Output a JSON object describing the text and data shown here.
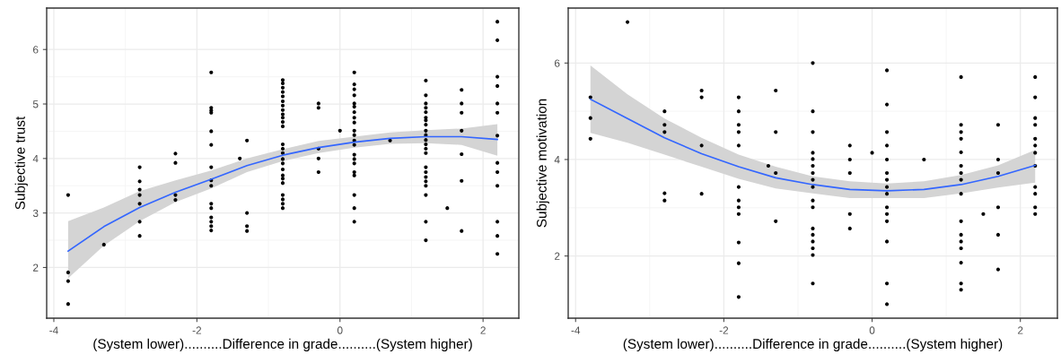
{
  "chart_data": [
    {
      "type": "scatter",
      "xlabel": "(System lower)..........Difference in grade..........(System higher)",
      "ylabel": "Subjective trust",
      "xlim": [
        -4.1,
        2.5
      ],
      "ylim": [
        1.07,
        6.76
      ],
      "xticks": [
        -4,
        -2,
        0,
        2
      ],
      "yticks": [
        2,
        3,
        4,
        5,
        6
      ],
      "grid": true,
      "series": [
        {
          "marker": "circle",
          "color": "#000000",
          "x": [
            -3.8,
            -3.8,
            -3.8,
            -3.8,
            -3.3,
            -2.8,
            -2.8,
            -2.8,
            -2.8,
            -2.8,
            -2.8,
            -2.8,
            -2.3,
            -2.3,
            -2.3,
            -2.3,
            -1.8,
            -1.8,
            -1.8,
            -1.8,
            -1.8,
            -1.8,
            -1.8,
            -1.8,
            -1.8,
            -1.8,
            -1.8,
            -1.8,
            -1.8,
            -1.8,
            -1.8,
            -1.4,
            -1.3,
            -1.3,
            -1.3,
            -1.3,
            -0.8,
            -0.8,
            -0.8,
            -0.8,
            -0.8,
            -0.8,
            -0.8,
            -0.8,
            -0.8,
            -0.8,
            -0.8,
            -0.8,
            -0.8,
            -0.8,
            -0.8,
            -0.8,
            -0.8,
            -0.8,
            -0.8,
            -0.8,
            -0.8,
            -0.8,
            -0.8,
            -0.8,
            -0.8,
            -0.3,
            -0.3,
            -0.3,
            -0.3,
            -0.3,
            0,
            0.2,
            0.2,
            0.2,
            0.2,
            0.2,
            0.2,
            0.2,
            0.2,
            0.2,
            0.2,
            0.2,
            0.2,
            0.2,
            0.2,
            0.2,
            0.2,
            0.2,
            0.2,
            0.2,
            0.2,
            0.2,
            0.7,
            1.2,
            1.2,
            1.2,
            1.2,
            1.2,
            1.2,
            1.2,
            1.2,
            1.2,
            1.2,
            1.2,
            1.2,
            1.2,
            1.2,
            1.2,
            1.2,
            1.2,
            1.2,
            1.2,
            1.2,
            1.2,
            1.2,
            1.5,
            1.7,
            1.7,
            1.7,
            1.7,
            1.7,
            1.7,
            1.7,
            2.2,
            2.2,
            2.2,
            2.2,
            2.2,
            2.2,
            2.2,
            2.2,
            2.2,
            2.2,
            2.2,
            2.2,
            2.2
          ],
          "values": [
            3.33,
            1.91,
            1.75,
            1.33,
            2.42,
            3.84,
            3.58,
            3.43,
            3.33,
            3.17,
            2.84,
            2.58,
            4.09,
            3.92,
            3.33,
            3.24,
            5.58,
            4.93,
            4.88,
            4.84,
            4.5,
            4.25,
            3.84,
            3.6,
            3.5,
            3.17,
            3.09,
            2.92,
            2.84,
            2.76,
            2.68,
            4.0,
            4.33,
            3.0,
            2.76,
            2.67,
            5.44,
            5.38,
            5.3,
            5.22,
            5.14,
            5.05,
            4.97,
            4.89,
            4.81,
            4.75,
            4.67,
            4.59,
            4.26,
            4.18,
            4.1,
            3.99,
            3.91,
            3.8,
            3.69,
            3.63,
            3.55,
            3.33,
            3.25,
            3.17,
            3.09,
            5.01,
            4.93,
            4.18,
            4.0,
            3.75,
            4.51,
            5.58,
            5.36,
            5.27,
            5.16,
            5.01,
            4.95,
            4.85,
            4.75,
            4.66,
            4.51,
            4.43,
            4.33,
            4.25,
            4.07,
            3.99,
            3.91,
            3.75,
            3.69,
            3.33,
            3.09,
            2.84,
            4.33,
            5.43,
            5.16,
            5.01,
            4.93,
            4.85,
            4.75,
            4.7,
            4.62,
            4.51,
            4.43,
            4.34,
            4.26,
            4.18,
            4.1,
            3.84,
            3.75,
            3.66,
            3.58,
            3.5,
            3.33,
            2.84,
            2.5,
            3.09,
            5.26,
            5.01,
            4.84,
            4.51,
            4.08,
            3.59,
            2.67,
            6.51,
            6.17,
            5.5,
            5.33,
            5.01,
            4.84,
            4.42,
            3.92,
            3.75,
            3.5,
            2.84,
            2.58,
            2.25
          ]
        },
        {
          "type": "line",
          "color": "#3366ff",
          "x": [
            -3.8,
            -3.3,
            -2.8,
            -2.3,
            -1.8,
            -1.3,
            -0.8,
            -0.3,
            0.2,
            0.7,
            1.2,
            1.7,
            2.2
          ],
          "values": [
            2.3,
            2.75,
            3.1,
            3.38,
            3.62,
            3.87,
            4.06,
            4.2,
            4.3,
            4.37,
            4.4,
            4.4,
            4.35
          ],
          "lower": [
            1.8,
            2.4,
            2.85,
            3.2,
            3.45,
            3.75,
            3.95,
            4.1,
            4.2,
            4.27,
            4.28,
            4.25,
            4.05
          ],
          "upper": [
            2.85,
            3.1,
            3.4,
            3.6,
            3.78,
            4.0,
            4.17,
            4.32,
            4.4,
            4.48,
            4.52,
            4.55,
            4.63
          ]
        }
      ]
    },
    {
      "type": "scatter",
      "xlabel": "(System lower)..........Difference in grade..........(System higher)",
      "ylabel": "Subjective motivation",
      "xlim": [
        -4.1,
        2.5
      ],
      "ylim": [
        0.71,
        7.14
      ],
      "xticks": [
        -4,
        -2,
        0,
        2
      ],
      "yticks": [
        2,
        4,
        6
      ],
      "grid": true,
      "series": [
        {
          "marker": "circle",
          "color": "#000000",
          "x": [
            -3.8,
            -3.8,
            -3.8,
            -3.3,
            -2.8,
            -2.8,
            -2.8,
            -2.8,
            -2.8,
            -2.3,
            -2.3,
            -2.3,
            -2.3,
            -1.8,
            -1.8,
            -1.8,
            -1.8,
            -1.8,
            -1.8,
            -1.8,
            -1.8,
            -1.8,
            -1.8,
            -1.8,
            -1.8,
            -1.4,
            -1.3,
            -1.3,
            -1.3,
            -1.3,
            -0.8,
            -0.8,
            -0.8,
            -0.8,
            -0.8,
            -0.8,
            -0.8,
            -0.8,
            -0.8,
            -0.8,
            -0.8,
            -0.8,
            -0.8,
            -0.8,
            -0.8,
            -0.8,
            -0.8,
            -0.3,
            -0.3,
            -0.3,
            -0.3,
            -0.3,
            0,
            0.2,
            0.2,
            0.2,
            0.2,
            0.2,
            0.2,
            0.2,
            0.2,
            0.2,
            0.2,
            0.2,
            0.2,
            0.2,
            0.2,
            0.2,
            0.7,
            1.2,
            1.2,
            1.2,
            1.2,
            1.2,
            1.2,
            1.2,
            1.2,
            1.2,
            1.2,
            1.2,
            1.2,
            1.2,
            1.2,
            1.2,
            1.2,
            1.5,
            1.7,
            1.7,
            1.7,
            1.7,
            1.7,
            1.7,
            2.2,
            2.2,
            2.2,
            2.2,
            2.2,
            2.2,
            2.2,
            2.2,
            2.2,
            2.2,
            2.2,
            2.2
          ],
          "values": [
            5.29,
            4.86,
            4.43,
            6.85,
            5.0,
            4.72,
            4.57,
            3.3,
            3.15,
            5.43,
            5.29,
            4.29,
            3.29,
            5.29,
            5.0,
            4.72,
            4.57,
            4.29,
            3.43,
            3.15,
            3.01,
            2.87,
            2.28,
            1.85,
            1.15,
            3.87,
            5.43,
            4.57,
            3.72,
            2.72,
            6.0,
            5.0,
            4.57,
            4.14,
            4.01,
            3.87,
            3.72,
            3.58,
            3.43,
            3.15,
            3.01,
            2.57,
            2.44,
            2.3,
            2.16,
            2.02,
            1.43,
            4.29,
            4.0,
            3.72,
            2.87,
            2.57,
            4.14,
            5.85,
            5.14,
            4.57,
            4.29,
            4.0,
            3.72,
            3.58,
            3.43,
            3.29,
            3.01,
            2.87,
            2.72,
            2.3,
            1.43,
            1.0,
            4.0,
            5.71,
            4.72,
            4.57,
            4.43,
            4.15,
            3.87,
            3.72,
            3.58,
            3.29,
            2.72,
            2.44,
            2.3,
            2.16,
            1.86,
            1.43,
            1.3,
            2.87,
            4.72,
            4.0,
            3.72,
            3.01,
            2.44,
            1.72,
            5.71,
            5.29,
            4.86,
            4.72,
            4.43,
            4.29,
            4.14,
            3.87,
            3.43,
            3.29,
            3.01,
            2.87
          ]
        },
        {
          "type": "line",
          "color": "#3366ff",
          "x": [
            -3.8,
            -3.3,
            -2.8,
            -2.3,
            -1.8,
            -1.3,
            -0.8,
            -0.3,
            0.2,
            0.7,
            1.2,
            1.7,
            2.2
          ],
          "values": [
            5.25,
            4.85,
            4.45,
            4.12,
            3.85,
            3.62,
            3.48,
            3.38,
            3.35,
            3.38,
            3.48,
            3.65,
            3.88
          ],
          "lower": [
            4.55,
            4.35,
            4.1,
            3.85,
            3.6,
            3.4,
            3.3,
            3.2,
            3.2,
            3.2,
            3.3,
            3.42,
            3.52
          ],
          "upper": [
            5.95,
            5.35,
            4.85,
            4.45,
            4.1,
            3.85,
            3.65,
            3.55,
            3.5,
            3.55,
            3.68,
            3.88,
            4.2
          ]
        }
      ]
    }
  ]
}
